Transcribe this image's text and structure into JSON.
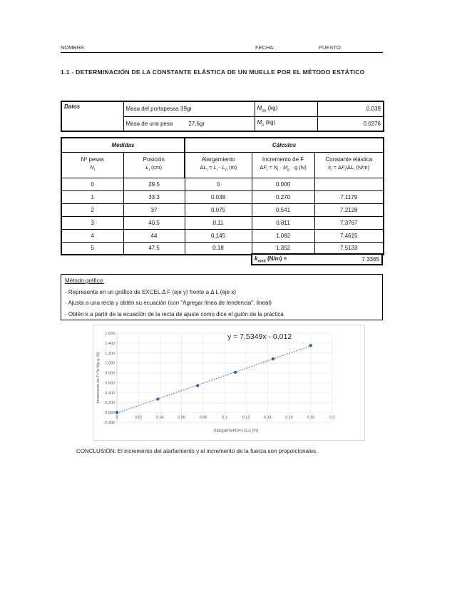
{
  "header": {
    "nombre": "NOMBRE:",
    "fecha": "FECHA:",
    "puesto": "PUESTO:"
  },
  "title": "1.1 - DETERMINACIÓN DE LA CONSTANTE ELÁSTICA DE UN MUELLE POR EL MÉTODO ESTÁTICO",
  "datos_table": {
    "label": "Datos",
    "rows": [
      {
        "desc": "Masa del portapesas 39gr",
        "desc2": "",
        "symbol": [
          {
            "i": "M"
          },
          {
            "s": "pp"
          },
          {
            "t": " (kg)"
          }
        ],
        "value": "0.039"
      },
      {
        "desc": "Masa de una pesa",
        "desc2": "27,6gr",
        "symbol": [
          {
            "i": "M"
          },
          {
            "s": "p"
          },
          {
            "t": " (kg)"
          }
        ],
        "value": "0.0276"
      }
    ]
  },
  "main_table": {
    "group_headers": [
      "Medidas",
      "Cálculos"
    ],
    "columns": [
      {
        "title": "Nº pesas",
        "formula": [
          {
            "i": "N"
          },
          {
            "s": "i"
          }
        ]
      },
      {
        "title": "Posición",
        "formula": [
          {
            "i": "L"
          },
          {
            "s": "i"
          },
          {
            "t": "  (cm)"
          }
        ]
      },
      {
        "title": "Alargamiento",
        "formula": [
          {
            "t": "Δ"
          },
          {
            "i": "L"
          },
          {
            "s": "i"
          },
          {
            "t": " = "
          },
          {
            "i": "L"
          },
          {
            "s": "i"
          },
          {
            "t": " - "
          },
          {
            "i": "L"
          },
          {
            "s": "o"
          },
          {
            "t": " (m)"
          }
        ]
      },
      {
        "title": "Incremento de F",
        "formula": [
          {
            "t": "Δ"
          },
          {
            "i": "F"
          },
          {
            "s": "i"
          },
          {
            "t": " = "
          },
          {
            "i": "N"
          },
          {
            "s": "i"
          },
          {
            "t": " · "
          },
          {
            "i": "M"
          },
          {
            "s": "p"
          },
          {
            "t": " · g (N)"
          }
        ]
      },
      {
        "title": "Constante elástica",
        "formula": [
          {
            "i": "k"
          },
          {
            "s": "i"
          },
          {
            "t": " = Δ"
          },
          {
            "i": "F"
          },
          {
            "s": "i"
          },
          {
            "t": "/Δ"
          },
          {
            "i": "L"
          },
          {
            "s": "i"
          },
          {
            "t": " (N/m)"
          }
        ]
      }
    ],
    "rows": [
      [
        "0",
        "29.5",
        "0",
        "0.000",
        ""
      ],
      [
        "1",
        "33.3",
        "0.038",
        "0.270",
        "7.1179"
      ],
      [
        "2",
        "37",
        "0.075",
        "0.541",
        "7.2128"
      ],
      [
        "3",
        "40.5",
        "0.11",
        "0.811",
        "7.3767"
      ],
      [
        "4",
        "44",
        "0.145",
        "1.082",
        "7.4615"
      ],
      [
        "5",
        "47.5",
        "0.18",
        "1.352",
        "7.5133"
      ]
    ],
    "kmed": {
      "label": [
        {
          "i": "k"
        },
        {
          "s": "med"
        },
        {
          "t": " (N/m) ="
        }
      ],
      "value": "7.3365"
    }
  },
  "metodo": {
    "title": "Método gráfico:",
    "lines": [
      "- Representa en un gráfico de EXCEL Δ F (eje y) frente a Δ L (eje x)",
      "- Ajusta a una recta y obtén su ecuación (con \"Agregar línea de tendencia\", lineal)",
      "- Obtén k a partir de la ecuación de la recta de ajuste como dice el guión de la práctica"
    ]
  },
  "chart_data": {
    "type": "scatter",
    "x": [
      0,
      0.038,
      0.075,
      0.11,
      0.145,
      0.18
    ],
    "y": [
      0.0,
      0.27,
      0.541,
      0.811,
      1.082,
      1.352
    ],
    "trendline": {
      "slope": 7.5349,
      "intercept": -0.012,
      "equation": "y = 7,5349x - 0,012",
      "style": "dotted"
    },
    "xlabel": "Alargamiento=Li-Lo (m)",
    "ylabel": "Incremento de F=Ni·Mp·g (N)",
    "xlim": [
      0,
      0.2
    ],
    "ylim": [
      -0.2,
      1.6
    ],
    "x_ticks": [
      [
        0,
        "0"
      ],
      [
        0.02,
        "0.02"
      ],
      [
        0.04,
        "0.04"
      ],
      [
        0.06,
        "0.06"
      ],
      [
        0.08,
        "0.08"
      ],
      [
        0.1,
        "0.1"
      ],
      [
        0.12,
        "0.12"
      ],
      [
        0.14,
        "0.14"
      ],
      [
        0.16,
        "0.16"
      ],
      [
        0.18,
        "0.18"
      ],
      [
        0.2,
        "0.2"
      ]
    ],
    "y_ticks": [
      [
        1.6,
        "1.600"
      ],
      [
        1.4,
        "1.400"
      ],
      [
        1.2,
        "1.200"
      ],
      [
        1.0,
        "1.000"
      ],
      [
        0.8,
        "0.800"
      ],
      [
        0.6,
        "0.600"
      ],
      [
        0.4,
        "0.400"
      ],
      [
        0.2,
        "0.200"
      ],
      [
        0.0,
        "0.000"
      ],
      [
        -0.2,
        "-0.200"
      ]
    ],
    "grid": true,
    "legend": false,
    "point_color": "#2e5b9f",
    "line_color": "#4472c4",
    "grid_color": "#e2e6ec",
    "axis_color": "#cdd3da",
    "tick_color": "#595959",
    "equation_color": "#262626"
  },
  "conclusion": "CONCLUSIÓN: El incremento del alarfamiento y el incremento de la fuerza son proporcionales."
}
